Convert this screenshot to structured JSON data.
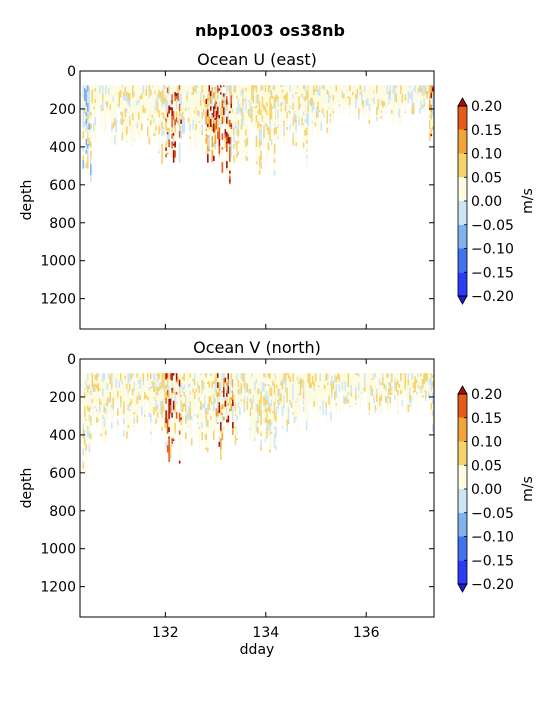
{
  "figure": {
    "suptitle": "nbp1003 os38nb"
  },
  "colorbar": {
    "unit": "m/s",
    "levels": [
      -0.2,
      -0.15,
      -0.1,
      -0.05,
      0.0,
      0.05,
      0.1,
      0.15,
      0.2
    ],
    "tick_labels": [
      "−0.20",
      "−0.15",
      "−0.10",
      "−0.05",
      "0.00",
      "0.05",
      "0.10",
      "0.15",
      "0.20"
    ],
    "colors": [
      "#2a3cf5",
      "#3f73f2",
      "#7fb2ee",
      "#cde6f6",
      "#fdfbe0",
      "#f7d36b",
      "#f0a43a",
      "#e65a1a"
    ],
    "under_color": "#1a1ae0",
    "over_color": "#a80c0c"
  },
  "chart_data": [
    {
      "type": "heatmap",
      "title": "Ocean U (east)",
      "xlabel": "",
      "ylabel": "depth",
      "xlim": [
        130.3,
        137.35
      ],
      "ylim": [
        1360,
        0
      ],
      "x_ticks": [
        132,
        134,
        136
      ],
      "x_tick_labels_shown": false,
      "y_ticks": [
        0,
        200,
        400,
        600,
        800,
        1000,
        1200
      ],
      "y_tick_labels": [
        "0",
        "200",
        "400",
        "600",
        "800",
        "1000",
        "1200"
      ],
      "grid": false,
      "value_unit": "m/s",
      "data_top_depth": 75,
      "profile_features": [
        {
          "x_start": 130.35,
          "x_end": 130.5,
          "max_depth": 650,
          "value": -0.05
        },
        {
          "x_start": 130.5,
          "x_end": 131.8,
          "max_depth": 400,
          "value": 0.05
        },
        {
          "x_start": 131.8,
          "x_end": 132.0,
          "max_depth": 520,
          "value": 0.1
        },
        {
          "x_start": 132.0,
          "x_end": 132.3,
          "max_depth": 530,
          "value": 0.2
        },
        {
          "x_start": 132.3,
          "x_end": 132.8,
          "max_depth": 450,
          "value": 0.05
        },
        {
          "x_start": 132.8,
          "x_end": 133.0,
          "max_depth": 520,
          "value": 0.15
        },
        {
          "x_start": 133.0,
          "x_end": 133.35,
          "max_depth": 620,
          "value": 0.2
        },
        {
          "x_start": 133.35,
          "x_end": 133.8,
          "max_depth": 500,
          "value": 0.05
        },
        {
          "x_start": 133.8,
          "x_end": 134.2,
          "max_depth": 560,
          "value": 0.1
        },
        {
          "x_start": 134.2,
          "x_end": 134.8,
          "max_depth": 420,
          "value": 0.05
        },
        {
          "x_start": 134.8,
          "x_end": 134.85,
          "max_depth": 620,
          "value": 0.05
        },
        {
          "x_start": 134.85,
          "x_end": 135.3,
          "max_depth": 350,
          "value": 0.05
        },
        {
          "x_start": 135.3,
          "x_end": 136.9,
          "max_depth": 290,
          "value": 0.05
        },
        {
          "x_start": 136.9,
          "x_end": 137.25,
          "max_depth": 250,
          "value": 0.0
        },
        {
          "x_start": 137.25,
          "x_end": 137.35,
          "max_depth": 400,
          "value": 0.15
        }
      ]
    },
    {
      "type": "heatmap",
      "title": "Ocean V (north)",
      "xlabel": "dday",
      "ylabel": "depth",
      "xlim": [
        130.3,
        137.35
      ],
      "ylim": [
        1360,
        0
      ],
      "x_ticks": [
        132,
        134,
        136
      ],
      "x_tick_labels": [
        "132",
        "134",
        "136"
      ],
      "y_ticks": [
        0,
        200,
        400,
        600,
        800,
        1000,
        1200
      ],
      "y_tick_labels": [
        "0",
        "200",
        "400",
        "600",
        "800",
        "1000",
        "1200"
      ],
      "grid": false,
      "value_unit": "m/s",
      "data_top_depth": 75,
      "profile_features": [
        {
          "x_start": 130.35,
          "x_end": 130.5,
          "max_depth": 720,
          "value": 0.05
        },
        {
          "x_start": 130.5,
          "x_end": 131.8,
          "max_depth": 450,
          "value": 0.05
        },
        {
          "x_start": 131.8,
          "x_end": 132.0,
          "max_depth": 520,
          "value": 0.1
        },
        {
          "x_start": 132.0,
          "x_end": 132.3,
          "max_depth": 560,
          "value": 0.2
        },
        {
          "x_start": 132.3,
          "x_end": 132.8,
          "max_depth": 480,
          "value": 0.05
        },
        {
          "x_start": 132.8,
          "x_end": 133.0,
          "max_depth": 500,
          "value": 0.1
        },
        {
          "x_start": 133.0,
          "x_end": 133.35,
          "max_depth": 600,
          "value": 0.15
        },
        {
          "x_start": 133.35,
          "x_end": 133.8,
          "max_depth": 460,
          "value": 0.05
        },
        {
          "x_start": 133.8,
          "x_end": 134.2,
          "max_depth": 560,
          "value": 0.1
        },
        {
          "x_start": 134.2,
          "x_end": 134.8,
          "max_depth": 400,
          "value": 0.05
        },
        {
          "x_start": 134.8,
          "x_end": 135.3,
          "max_depth": 350,
          "value": 0.05
        },
        {
          "x_start": 135.3,
          "x_end": 136.9,
          "max_depth": 300,
          "value": 0.05
        },
        {
          "x_start": 136.9,
          "x_end": 137.25,
          "max_depth": 250,
          "value": 0.1
        },
        {
          "x_start": 137.25,
          "x_end": 137.35,
          "max_depth": 430,
          "value": 0.0
        }
      ]
    }
  ]
}
